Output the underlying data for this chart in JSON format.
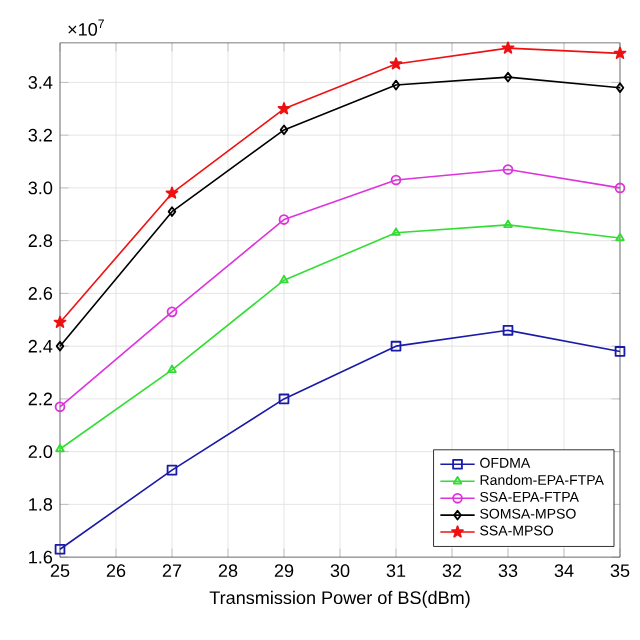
{
  "chart_data": {
    "type": "line",
    "xlabel": "Transmission Power of BS(dBm)",
    "x": [
      25,
      27,
      29,
      31,
      33,
      35
    ],
    "series": [
      {
        "name": "OFDMA",
        "color": "#1a1aa8",
        "marker": "square",
        "values": [
          1.63,
          1.93,
          2.2,
          2.4,
          2.46,
          2.38
        ]
      },
      {
        "name": "Random-EPA-FTPA",
        "color": "#33dd33",
        "marker": "triangle",
        "values": [
          2.01,
          2.31,
          2.65,
          2.83,
          2.86,
          2.81
        ]
      },
      {
        "name": "SSA-EPA-FTPA",
        "color": "#dd33dd",
        "marker": "circle",
        "values": [
          2.17,
          2.53,
          2.88,
          3.03,
          3.07,
          3.0
        ]
      },
      {
        "name": "SOMSA-MPSO",
        "color": "#000000",
        "marker": "diamond",
        "values": [
          2.4,
          2.91,
          3.22,
          3.39,
          3.42,
          3.38
        ]
      },
      {
        "name": "SSA-MPSO",
        "color": "#ee1111",
        "marker": "star",
        "values": [
          2.49,
          2.98,
          3.3,
          3.47,
          3.53,
          3.51
        ]
      }
    ],
    "xlim": [
      25,
      35
    ],
    "xticks": [
      25,
      26,
      27,
      28,
      29,
      30,
      31,
      32,
      33,
      34,
      35
    ],
    "ylim": [
      1.6,
      3.55
    ],
    "yticks": [
      1.6,
      1.8,
      {
        "value": 2,
        "label": "2.0"
      },
      2.2,
      2.4,
      2.6,
      2.8,
      {
        "value": 3,
        "label": "3.0"
      },
      3.2,
      3.4
    ],
    "annotations": [
      "×10$^{7}$"
    ],
    "grid": true,
    "legend": "bottom right",
    "line_style": "solid"
  }
}
